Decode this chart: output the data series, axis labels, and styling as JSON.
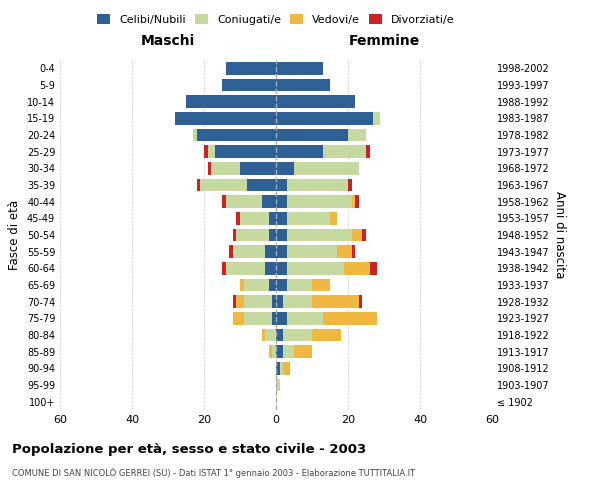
{
  "age_groups": [
    "100+",
    "95-99",
    "90-94",
    "85-89",
    "80-84",
    "75-79",
    "70-74",
    "65-69",
    "60-64",
    "55-59",
    "50-54",
    "45-49",
    "40-44",
    "35-39",
    "30-34",
    "25-29",
    "20-24",
    "15-19",
    "10-14",
    "5-9",
    "0-4"
  ],
  "birth_years": [
    "≤ 1902",
    "1903-1907",
    "1908-1912",
    "1913-1917",
    "1918-1922",
    "1923-1927",
    "1928-1932",
    "1933-1937",
    "1938-1942",
    "1943-1947",
    "1948-1952",
    "1953-1957",
    "1958-1962",
    "1963-1967",
    "1968-1972",
    "1973-1977",
    "1978-1982",
    "1983-1987",
    "1988-1992",
    "1993-1997",
    "1998-2002"
  ],
  "male_celibe": [
    0,
    0,
    0,
    0,
    0,
    1,
    1,
    2,
    3,
    3,
    2,
    2,
    4,
    8,
    10,
    17,
    22,
    28,
    25,
    15,
    14
  ],
  "male_coniugato": [
    0,
    0,
    0,
    1,
    3,
    8,
    8,
    7,
    11,
    9,
    9,
    8,
    10,
    13,
    8,
    2,
    1,
    0,
    0,
    0,
    0
  ],
  "male_vedovo": [
    0,
    0,
    0,
    1,
    1,
    3,
    2,
    1,
    0,
    0,
    0,
    0,
    0,
    0,
    0,
    0,
    0,
    0,
    0,
    0,
    0
  ],
  "male_divorziato": [
    0,
    0,
    0,
    0,
    0,
    0,
    1,
    0,
    1,
    1,
    1,
    1,
    1,
    1,
    1,
    1,
    0,
    0,
    0,
    0,
    0
  ],
  "female_celibe": [
    0,
    0,
    1,
    2,
    2,
    3,
    2,
    3,
    3,
    3,
    3,
    3,
    3,
    3,
    5,
    13,
    20,
    27,
    22,
    15,
    13
  ],
  "female_coniugato": [
    0,
    1,
    1,
    3,
    8,
    10,
    8,
    7,
    16,
    14,
    18,
    12,
    18,
    17,
    18,
    12,
    5,
    2,
    0,
    0,
    0
  ],
  "female_vedovo": [
    0,
    0,
    2,
    5,
    8,
    15,
    13,
    5,
    7,
    4,
    3,
    2,
    1,
    0,
    0,
    0,
    0,
    0,
    0,
    0,
    0
  ],
  "female_divorziato": [
    0,
    0,
    0,
    0,
    0,
    0,
    1,
    0,
    2,
    1,
    1,
    0,
    1,
    1,
    0,
    1,
    0,
    0,
    0,
    0,
    0
  ],
  "color_celibe": "#2e6096",
  "color_coniugato": "#c5d9a0",
  "color_vedovo": "#f0b840",
  "color_divorziato": "#cc2222",
  "title": "Popolazione per età, sesso e stato civile - 2003",
  "subtitle": "COMUNE DI SAN NICOLÒ GERREI (SU) - Dati ISTAT 1° gennaio 2003 - Elaborazione TUTTITALIA.IT",
  "xlabel_left": "Maschi",
  "xlabel_right": "Femmine",
  "ylabel_left": "Fasce di età",
  "ylabel_right": "Anni di nascita",
  "xlim": 60,
  "background_color": "#ffffff",
  "grid_color": "#cccccc"
}
